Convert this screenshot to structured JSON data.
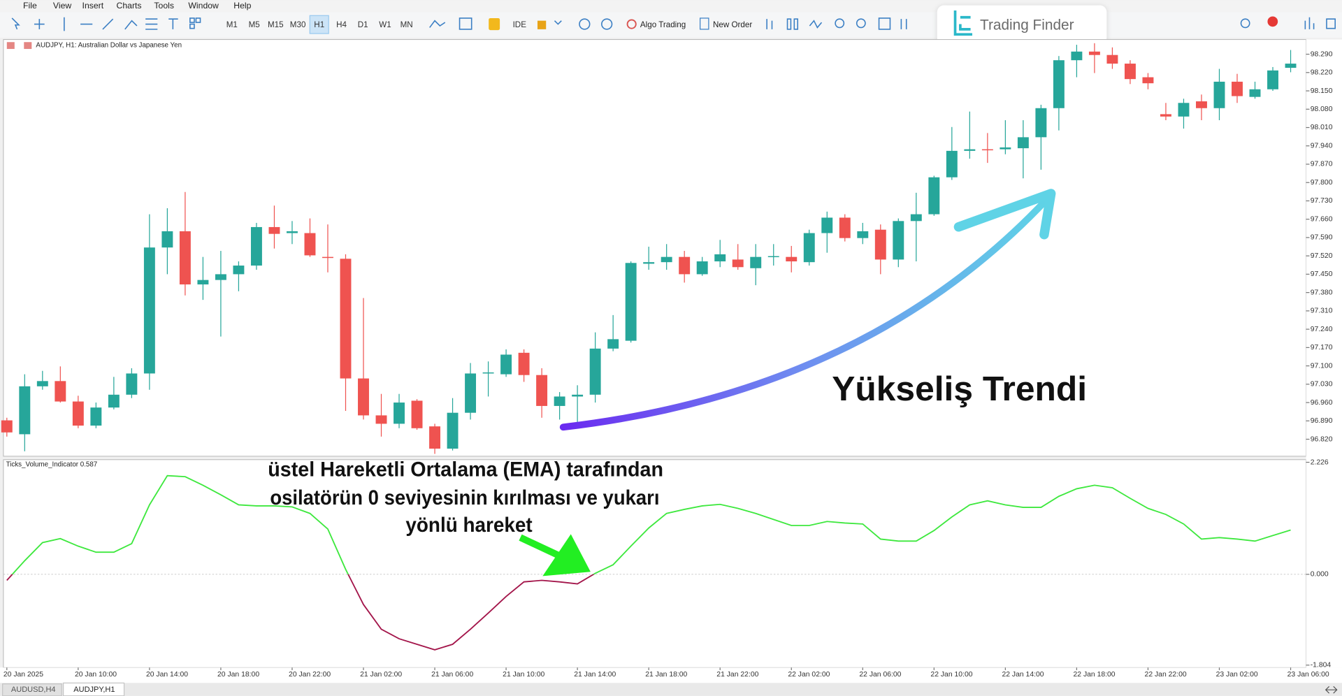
{
  "menu": [
    "File",
    "View",
    "Insert",
    "Charts",
    "Tools",
    "Window",
    "Help"
  ],
  "toolbar": {
    "timeframes": [
      "M1",
      "M5",
      "M15",
      "M30",
      "H1",
      "H4",
      "D1",
      "W1",
      "MN"
    ],
    "ide": "IDE",
    "algo": "Algo Trading",
    "order": "New Order"
  },
  "logo": "Trading Finder",
  "tabs": [
    "AUDUSD,H4",
    "AUDJPY,H1"
  ],
  "annotations": {
    "trend": "Yükseliş Trendi",
    "note": [
      "üstel Hareketli Ortalama (EMA) tarafından",
      "osilatörün 0 seviyesinin kırılması ve yukarı",
      "yönlü hareket"
    ]
  },
  "chart_data": [
    {
      "type": "candlestick",
      "title": "AUDJPY, H1:  Australian Dollar vs Japanese Yen",
      "categories": [
        "20 Jan 2025",
        null,
        null,
        null,
        "20 Jan 10:00",
        null,
        null,
        null,
        "20 Jan 14:00",
        null,
        null,
        null,
        "20 Jan 18:00",
        null,
        null,
        null,
        "20 Jan 22:00",
        null,
        null,
        null,
        "21 Jan 02:00",
        null,
        null,
        null,
        "21 Jan 06:00",
        null,
        null,
        null,
        "21 Jan 10:00",
        null,
        null,
        null,
        "21 Jan 14:00",
        null,
        null,
        null,
        "21 Jan 18:00",
        null,
        null,
        null,
        "21 Jan 22:00",
        null,
        null,
        null,
        "22 Jan 02:00",
        null,
        null,
        null,
        "22 Jan 06:00",
        null,
        null,
        null,
        "22 Jan 10:00",
        null,
        null,
        null,
        "22 Jan 14:00",
        null,
        null,
        null,
        "22 Jan 18:00",
        null,
        null,
        null,
        "22 Jan 22:00",
        null,
        null,
        null,
        "23 Jan 02:00",
        null,
        null,
        null,
        "23 Jan 06:00"
      ],
      "open": [
        96.892,
        96.839,
        97.022,
        97.042,
        96.964,
        96.872,
        96.941,
        96.99,
        97.071,
        97.552,
        97.614,
        97.411,
        97.428,
        97.45,
        97.483,
        97.63,
        97.607,
        97.607,
        97.516,
        97.509,
        97.052,
        96.911,
        96.879,
        96.967,
        96.869,
        96.784,
        96.921,
        97.071,
        97.068,
        97.15,
        97.065,
        96.947,
        96.983,
        96.99,
        97.166,
        97.196,
        97.49,
        97.496,
        97.516,
        97.45,
        97.499,
        97.506,
        97.473,
        97.516,
        97.516,
        97.496,
        97.607,
        97.666,
        97.588,
        97.62,
        97.506,
        97.653,
        97.679,
        97.82,
        97.921,
        97.927,
        97.927,
        97.931,
        97.973,
        98.084,
        98.267,
        98.3,
        98.287,
        98.254,
        98.202,
        98.061,
        98.052,
        98.11,
        98.084,
        98.185,
        98.127,
        98.156,
        98.238
      ],
      "high": [
        96.902,
        97.068,
        97.081,
        97.098,
        96.986,
        96.96,
        97.058,
        97.091,
        97.679,
        97.702,
        97.764,
        97.516,
        97.539,
        97.499,
        97.646,
        97.712,
        97.653,
        97.663,
        97.64,
        97.526,
        97.359,
        96.993,
        96.993,
        96.973,
        96.879,
        96.977,
        97.111,
        97.117,
        97.163,
        97.163,
        97.091,
        97.0,
        97.026,
        97.228,
        97.294,
        97.499,
        97.555,
        97.565,
        97.539,
        97.516,
        97.581,
        97.565,
        97.565,
        97.565,
        97.558,
        97.62,
        97.689,
        97.679,
        97.646,
        97.64,
        97.663,
        97.761,
        97.826,
        98.012,
        98.071,
        97.989,
        98.038,
        98.038,
        98.097,
        98.283,
        98.326,
        98.332,
        98.316,
        98.267,
        98.218,
        98.104,
        98.12,
        98.136,
        98.234,
        98.215,
        98.185,
        98.241,
        98.306
      ],
      "low": [
        96.83,
        96.774,
        97.009,
        96.96,
        96.862,
        96.862,
        96.934,
        96.977,
        97.009,
        97.45,
        97.369,
        97.352,
        97.212,
        97.385,
        97.467,
        97.548,
        97.565,
        97.516,
        97.457,
        96.928,
        96.895,
        96.83,
        96.862,
        96.856,
        96.764,
        96.777,
        96.895,
        96.983,
        97.058,
        97.039,
        96.902,
        96.895,
        96.879,
        96.96,
        97.156,
        97.189,
        97.467,
        97.467,
        97.418,
        97.444,
        97.477,
        97.467,
        97.408,
        97.483,
        97.457,
        97.483,
        97.532,
        97.575,
        97.565,
        97.45,
        97.477,
        97.499,
        97.673,
        97.81,
        97.891,
        97.875,
        97.908,
        97.816,
        97.849,
        97.999,
        98.202,
        98.218,
        98.234,
        98.176,
        98.156,
        98.038,
        98.006,
        98.038,
        98.038,
        98.104,
        98.12,
        98.15,
        98.221
      ],
      "close": [
        96.846,
        97.022,
        97.042,
        96.964,
        96.872,
        96.941,
        96.99,
        97.071,
        97.552,
        97.614,
        97.411,
        97.428,
        97.45,
        97.483,
        97.63,
        97.604,
        97.614,
        97.522,
        97.512,
        97.052,
        96.911,
        96.879,
        96.96,
        96.862,
        96.784,
        96.921,
        97.071,
        97.075,
        97.143,
        97.065,
        96.947,
        96.983,
        96.99,
        97.166,
        97.202,
        97.493,
        97.496,
        97.516,
        97.45,
        97.499,
        97.526,
        97.477,
        97.516,
        97.519,
        97.499,
        97.607,
        97.666,
        97.588,
        97.614,
        97.506,
        97.653,
        97.679,
        97.82,
        97.921,
        97.927,
        97.924,
        97.934,
        97.973,
        98.084,
        98.267,
        98.3,
        98.287,
        98.254,
        98.195,
        98.179,
        98.052,
        98.104,
        98.084,
        98.185,
        98.13,
        98.156,
        98.228,
        98.254
      ],
      "up_color": "#26a69a",
      "down_color": "#ef5350",
      "ylim": [
        96.755,
        98.346
      ],
      "yticks": [
        {
          "value": 96.82,
          "label": "96.820"
        },
        {
          "value": 96.89,
          "label": "96.890"
        },
        {
          "value": 96.96,
          "label": "96.960"
        },
        {
          "value": 97.03,
          "label": "97.030"
        },
        {
          "value": 97.1,
          "label": "97.100"
        },
        {
          "value": 97.17,
          "label": "97.170"
        },
        {
          "value": 97.24,
          "label": "97.240"
        },
        {
          "value": 97.31,
          "label": "97.310"
        },
        {
          "value": 97.38,
          "label": "97.380"
        },
        {
          "value": 97.45,
          "label": "97.450"
        },
        {
          "value": 97.52,
          "label": "97.520"
        },
        {
          "value": 97.59,
          "label": "97.590"
        },
        {
          "value": 97.66,
          "label": "97.660"
        },
        {
          "value": 97.73,
          "label": "97.730"
        },
        {
          "value": 97.8,
          "label": "97.800"
        },
        {
          "value": 97.87,
          "label": "97.870"
        },
        {
          "value": 97.94,
          "label": "97.940"
        },
        {
          "value": 98.01,
          "label": "98.010"
        },
        {
          "value": 98.08,
          "label": "98.080"
        },
        {
          "value": 98.15,
          "label": "98.150"
        },
        {
          "value": 98.22,
          "label": "98.220"
        },
        {
          "value": 98.29,
          "label": "98.290"
        }
      ],
      "grid": false
    },
    {
      "type": "line",
      "title": "Ticks_Volume_Indicator 0.587",
      "values": [
        -0.12,
        0.27,
        0.63,
        0.71,
        0.56,
        0.44,
        0.44,
        0.61,
        1.38,
        1.96,
        1.94,
        1.77,
        1.58,
        1.38,
        1.36,
        1.36,
        1.34,
        1.21,
        0.9,
        0.1,
        -0.6,
        -1.09,
        -1.28,
        -1.39,
        -1.5,
        -1.39,
        -1.09,
        -0.77,
        -0.44,
        -0.15,
        -0.12,
        -0.15,
        -0.19,
        0.02,
        0.19,
        0.56,
        0.92,
        1.21,
        1.29,
        1.36,
        1.39,
        1.31,
        1.21,
        1.09,
        0.97,
        0.97,
        1.05,
        1.02,
        1.0,
        0.7,
        0.66,
        0.66,
        0.87,
        1.14,
        1.38,
        1.46,
        1.38,
        1.33,
        1.33,
        1.55,
        1.7,
        1.77,
        1.72,
        1.51,
        1.31,
        1.19,
        1.0,
        0.7,
        0.73,
        0.7,
        0.66,
        0.77,
        0.88
      ],
      "color": "#3ee83e",
      "negative_color": "#a3154a",
      "ylim": [
        -1.853,
        2.278
      ],
      "yticks": [
        2.226,
        {
          "value": 0,
          "label": "0.000"
        },
        -1.804
      ],
      "grid": false
    }
  ]
}
